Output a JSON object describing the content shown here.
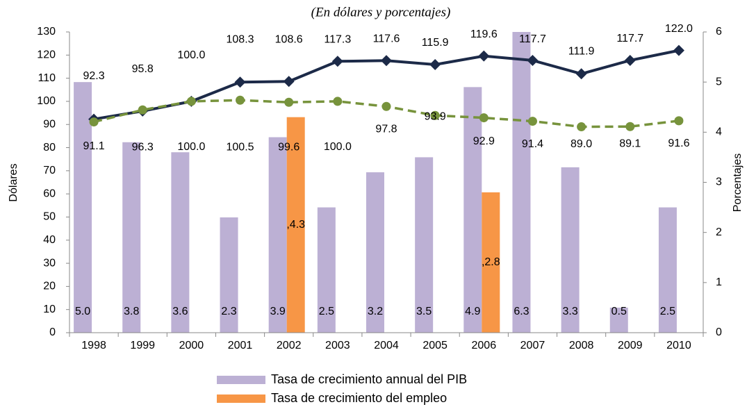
{
  "chart_data": {
    "type": "bar",
    "subtitle": "(En dólares y porcentajes)",
    "ylabel": "Dólares",
    "y2label": "Porcentajes",
    "categories": [
      "1998",
      "1999",
      "2000",
      "2001",
      "2002",
      "2003",
      "2004",
      "2005",
      "2006",
      "2007",
      "2008",
      "2009",
      "2010"
    ],
    "ylim": [
      0,
      130
    ],
    "yticks": [
      0,
      10,
      20,
      30,
      40,
      50,
      60,
      70,
      80,
      90,
      100,
      110,
      120,
      130
    ],
    "y2lim": [
      0,
      6
    ],
    "y2ticks": [
      0,
      1,
      2,
      3,
      4,
      5,
      6
    ],
    "grid": false,
    "legend": "bottom",
    "series": [
      {
        "name": "Tasa de crecimiento annual del PIB",
        "type": "bar",
        "axis": "y2",
        "color": "#bcb0d4",
        "values": [
          5.0,
          3.8,
          3.6,
          2.3,
          3.9,
          2.5,
          3.2,
          3.5,
          4.9,
          6.3,
          3.3,
          0.5,
          2.5
        ],
        "value_labels": [
          "5.0",
          "3.8",
          "3.6",
          "2.3",
          "3.9",
          "2.5",
          "3.2",
          "3.5",
          "4.9",
          "6.3",
          "3.3",
          "0.5",
          "2.5"
        ]
      },
      {
        "name": "Tasa de crecimiento del empleo",
        "type": "bar",
        "axis": "y2",
        "color": "#f79646",
        "values": [
          null,
          null,
          null,
          null,
          4.3,
          null,
          null,
          null,
          2.8,
          null,
          null,
          null,
          null
        ],
        "value_labels": [
          null,
          null,
          null,
          null,
          ",4.3",
          null,
          null,
          null,
          ",2.8",
          null,
          null,
          null,
          null
        ]
      },
      {
        "type": "line",
        "axis": "y",
        "color": "#1c2a48",
        "marker": "diamond",
        "dashed": false,
        "values": [
          92.3,
          95.8,
          100.0,
          108.3,
          108.6,
          117.3,
          117.6,
          115.9,
          119.6,
          117.7,
          111.9,
          117.7,
          122.0
        ],
        "value_labels": [
          "92.3",
          "95.8",
          "100.0",
          "108.3",
          "108.6",
          "117.3",
          "117.6",
          "115.9",
          "119.6",
          "117.7",
          "111.9",
          "117.7",
          "122.0"
        ]
      },
      {
        "type": "line",
        "axis": "y",
        "color": "#77933c",
        "marker": "circle",
        "dashed": true,
        "values": [
          91.1,
          96.3,
          100.0,
          100.5,
          99.6,
          100.0,
          97.8,
          93.9,
          92.9,
          91.4,
          89.0,
          89.1,
          91.6
        ],
        "value_labels": [
          "91.1",
          "96.3",
          "100.0",
          "100.5",
          "99.6",
          "100.0",
          "97.8",
          "93.9",
          "92.9",
          "91.4",
          "89.0",
          "89.1",
          "91.6"
        ]
      }
    ]
  }
}
